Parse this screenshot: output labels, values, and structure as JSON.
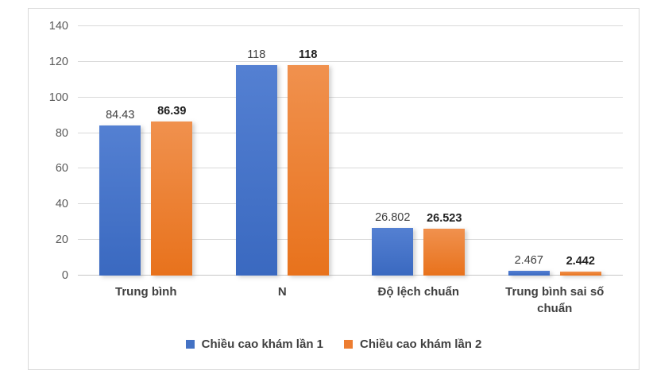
{
  "chart_data": {
    "type": "bar",
    "categories": [
      "Trung bình",
      "N",
      "Độ lệch chuẩn",
      "Trung bình sai số chuẩn"
    ],
    "series": [
      {
        "name": "Chiều cao khám lần 1",
        "color": "#4472C4",
        "values": [
          84.43,
          118,
          26.802,
          2.467
        ],
        "labels": [
          "84.43",
          "118",
          "26.802",
          "2.467"
        ]
      },
      {
        "name": "Chiều cao khám lần 2",
        "color": "#ED7D31",
        "values": [
          86.39,
          118,
          26.523,
          2.442
        ],
        "labels": [
          "86.39",
          "118",
          "26.523",
          "2.442"
        ]
      }
    ],
    "title": "",
    "xlabel": "",
    "ylabel": "",
    "ylim": [
      0,
      140
    ],
    "yticks": [
      0,
      20,
      40,
      60,
      80,
      100,
      120,
      140
    ],
    "grid": true,
    "legend_position": "bottom"
  },
  "colors": {
    "series1": "#4472C4",
    "series2": "#ED7D31",
    "gridline": "#D9D9D9",
    "frame_border": "#D9D9D9",
    "axis_text": "#595959",
    "category_text": "#404040",
    "background": "#FFFFFF"
  }
}
